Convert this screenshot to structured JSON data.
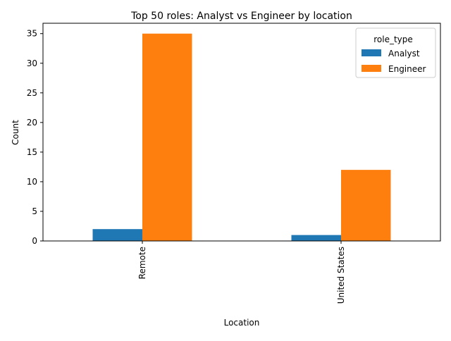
{
  "chart_data": {
    "type": "bar",
    "title": "Top 50 roles: Analyst vs Engineer by location",
    "xlabel": "Location",
    "ylabel": "Count",
    "categories": [
      "Remote",
      "United States"
    ],
    "series": [
      {
        "name": "Analyst",
        "values": [
          2,
          1
        ],
        "color": "#1f77b4"
      },
      {
        "name": "Engineer",
        "values": [
          35,
          12
        ],
        "color": "#ff7f0e"
      }
    ],
    "ylim": [
      0,
      36.75
    ],
    "yticks": [
      0,
      5,
      10,
      15,
      20,
      25,
      30,
      35
    ],
    "grid": false,
    "legend": {
      "title": "role_type",
      "placement": "top-right"
    }
  }
}
